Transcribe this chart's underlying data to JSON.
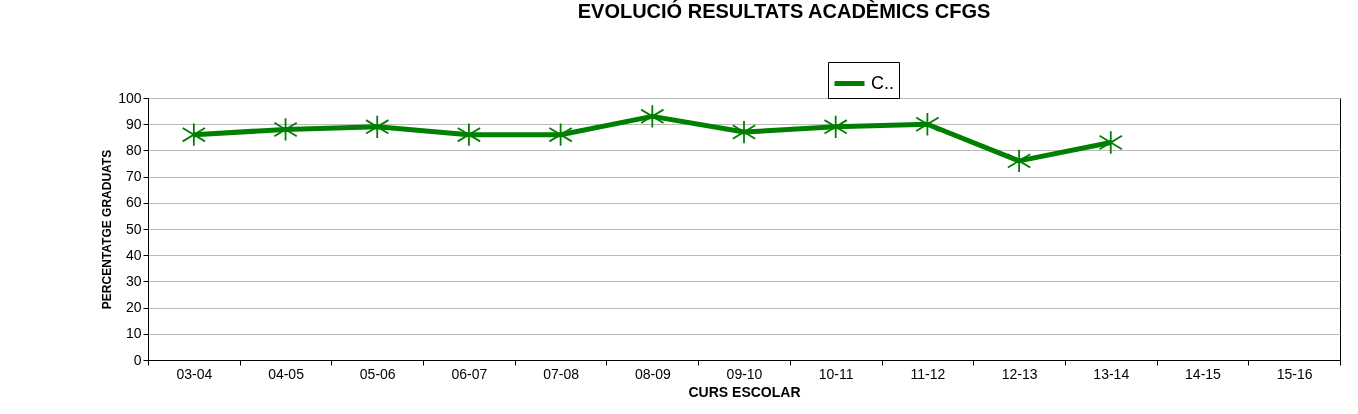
{
  "chart_data": {
    "type": "line",
    "title": "EVOLUCIÓ RESULTATS ACADÈMICS CFGS",
    "xlabel": "CURS ESCOLAR",
    "ylabel": "PERCENTATGE GRADUATS",
    "categories": [
      "03-04",
      "04-05",
      "05-06",
      "06-07",
      "07-08",
      "08-09",
      "09-10",
      "10-11",
      "11-12",
      "12-13",
      "13-14",
      "14-15",
      "15-16"
    ],
    "series": [
      {
        "name": "C..",
        "color": "#008000",
        "values": [
          86,
          88,
          89,
          86,
          86,
          93,
          87,
          89,
          90,
          76,
          83,
          null,
          null
        ]
      }
    ],
    "ylim": [
      0,
      100
    ],
    "yticks": [
      0,
      10,
      20,
      30,
      40,
      50,
      60,
      70,
      80,
      90,
      100
    ],
    "grid": "y",
    "legend": "top",
    "marker": "cross",
    "line_style": "solid"
  }
}
